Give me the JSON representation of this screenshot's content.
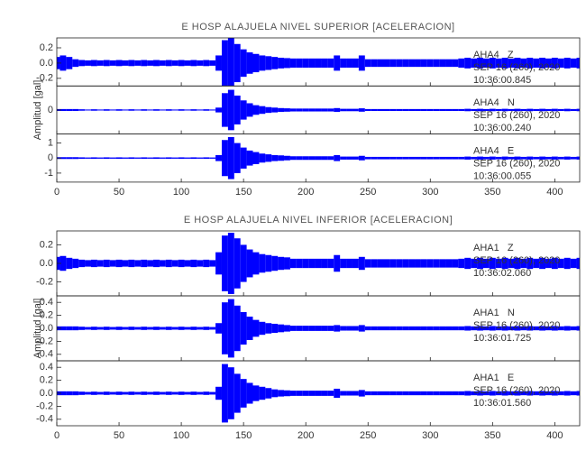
{
  "chart_data": [
    {
      "type": "seismogram",
      "title": "E HOSP ALAJUELA NIVEL SUPERIOR [ACELERACION]",
      "ylabel": "Amplitud [gal]",
      "xlim": [
        0,
        420
      ],
      "xticks": [
        0,
        50,
        100,
        150,
        200,
        250,
        300,
        350,
        400
      ],
      "x": [
        0,
        5,
        10,
        15,
        20,
        25,
        30,
        35,
        40,
        45,
        50,
        55,
        60,
        65,
        70,
        75,
        80,
        85,
        90,
        95,
        100,
        105,
        110,
        115,
        120,
        125,
        130,
        135,
        140,
        145,
        150,
        155,
        160,
        165,
        170,
        175,
        180,
        185,
        190,
        195,
        200,
        205,
        210,
        215,
        220,
        225,
        230,
        235,
        240,
        245,
        250,
        255,
        260,
        265,
        270,
        275,
        280,
        285,
        290,
        295,
        300,
        305,
        310,
        315,
        320,
        325,
        330,
        335,
        340,
        345,
        350,
        355,
        360,
        365,
        370,
        375,
        380,
        385,
        390,
        395,
        400,
        405,
        410,
        415,
        420
      ],
      "series": [
        {
          "label": [
            "AHA4   Z",
            "SEP 16 (260), 2020",
            "10:36:00.845"
          ],
          "color": "#0000ff",
          "ylim": [
            -0.3,
            0.33
          ],
          "yticks": [
            0.2,
            {
              "value": 0,
              "label": "0.0"
            },
            -0.2
          ],
          "values": [
            0.08,
            0.1,
            0.08,
            0.05,
            0.04,
            0.035,
            0.04,
            0.035,
            0.04,
            0.035,
            0.04,
            0.035,
            0.04,
            0.035,
            0.04,
            0.035,
            0.04,
            0.035,
            0.04,
            0.035,
            0.04,
            0.035,
            0.04,
            0.035,
            0.04,
            0.035,
            0.1,
            0.3,
            0.33,
            0.25,
            0.18,
            0.14,
            0.12,
            0.1,
            0.09,
            0.08,
            0.07,
            0.065,
            0.06,
            0.06,
            0.06,
            0.06,
            0.06,
            0.06,
            0.06,
            0.1,
            0.06,
            0.06,
            0.06,
            0.1,
            0.05,
            0.05,
            0.05,
            0.05,
            0.05,
            0.05,
            0.05,
            0.05,
            0.05,
            0.05,
            0.05,
            0.05,
            0.05,
            0.05,
            0.05,
            0.06,
            0.07,
            0.06,
            0.07,
            0.06,
            0.07,
            0.06,
            0.07,
            0.06,
            0.07,
            0.06,
            0.07,
            0.06,
            0.07,
            0.06,
            0.07,
            0.06,
            0.07,
            0.06,
            0.07
          ]
        },
        {
          "label": [
            "AHA4   N",
            "SEP 16 (260), 2020",
            "10:36:00.240"
          ],
          "color": "#0000ff",
          "ylim": [
            -0.5,
            0.5
          ],
          "yticks": [
            0
          ],
          "values": [
            0.02,
            0.02,
            0.02,
            0.02,
            0.015,
            0.01,
            0.015,
            0.01,
            0.015,
            0.01,
            0.015,
            0.01,
            0.015,
            0.01,
            0.015,
            0.01,
            0.015,
            0.01,
            0.015,
            0.01,
            0.015,
            0.01,
            0.015,
            0.01,
            0.015,
            0.01,
            0.05,
            0.35,
            0.42,
            0.3,
            0.2,
            0.14,
            0.1,
            0.08,
            0.06,
            0.05,
            0.04,
            0.035,
            0.03,
            0.03,
            0.03,
            0.03,
            0.03,
            0.03,
            0.03,
            0.04,
            0.025,
            0.025,
            0.025,
            0.035,
            0.02,
            0.02,
            0.02,
            0.02,
            0.02,
            0.02,
            0.02,
            0.02,
            0.02,
            0.02,
            0.02,
            0.02,
            0.02,
            0.02,
            0.02,
            0.02,
            0.025,
            0.02,
            0.025,
            0.02,
            0.025,
            0.02,
            0.025,
            0.02,
            0.025,
            0.02,
            0.025,
            0.02,
            0.025,
            0.02,
            0.025,
            0.02,
            0.025,
            0.02,
            0.025
          ]
        },
        {
          "label": [
            "AHA4   E",
            "SEP 16 (260), 2020",
            "10:36:00.055"
          ],
          "color": "#0000ff",
          "ylim": [
            -1.6,
            1.6
          ],
          "yticks": [
            1,
            0,
            -1
          ],
          "values": [
            0.06,
            0.06,
            0.06,
            0.06,
            0.05,
            0.04,
            0.05,
            0.04,
            0.05,
            0.04,
            0.05,
            0.04,
            0.05,
            0.04,
            0.05,
            0.04,
            0.05,
            0.04,
            0.05,
            0.04,
            0.05,
            0.04,
            0.05,
            0.04,
            0.05,
            0.04,
            0.2,
            1.2,
            1.4,
            1.0,
            0.7,
            0.5,
            0.4,
            0.3,
            0.25,
            0.2,
            0.18,
            0.15,
            0.12,
            0.12,
            0.12,
            0.12,
            0.12,
            0.12,
            0.12,
            0.2,
            0.1,
            0.1,
            0.1,
            0.15,
            0.08,
            0.08,
            0.08,
            0.08,
            0.08,
            0.08,
            0.08,
            0.08,
            0.08,
            0.08,
            0.08,
            0.08,
            0.08,
            0.08,
            0.08,
            0.08,
            0.1,
            0.08,
            0.1,
            0.08,
            0.1,
            0.08,
            0.1,
            0.08,
            0.1,
            0.08,
            0.1,
            0.08,
            0.1,
            0.08,
            0.1,
            0.08,
            0.1,
            0.08,
            0.1
          ]
        }
      ]
    },
    {
      "type": "seismogram",
      "title": "E HOSP ALAJUELA NIVEL INFERIOR [ACELERACION]",
      "ylabel": "Amplitud [gal]",
      "xlim": [
        0,
        420
      ],
      "xticks": [
        0,
        50,
        100,
        150,
        200,
        250,
        300,
        350,
        400
      ],
      "x": [
        0,
        5,
        10,
        15,
        20,
        25,
        30,
        35,
        40,
        45,
        50,
        55,
        60,
        65,
        70,
        75,
        80,
        85,
        90,
        95,
        100,
        105,
        110,
        115,
        120,
        125,
        130,
        135,
        140,
        145,
        150,
        155,
        160,
        165,
        170,
        175,
        180,
        185,
        190,
        195,
        200,
        205,
        210,
        215,
        220,
        225,
        230,
        235,
        240,
        245,
        250,
        255,
        260,
        265,
        270,
        275,
        280,
        285,
        290,
        295,
        300,
        305,
        310,
        315,
        320,
        325,
        330,
        335,
        340,
        345,
        350,
        355,
        360,
        365,
        370,
        375,
        380,
        385,
        390,
        395,
        400,
        405,
        410,
        415,
        420
      ],
      "series": [
        {
          "label": [
            "AHA1   Z",
            "SEP 16 (260), 2020",
            "10:36:02.060"
          ],
          "color": "#0000ff",
          "ylim": [
            -0.35,
            0.35
          ],
          "yticks": [
            0.2,
            {
              "value": 0,
              "label": "0.0"
            },
            -0.2
          ],
          "values": [
            0.07,
            0.08,
            0.06,
            0.05,
            0.04,
            0.035,
            0.04,
            0.035,
            0.04,
            0.035,
            0.04,
            0.035,
            0.04,
            0.035,
            0.04,
            0.035,
            0.04,
            0.035,
            0.04,
            0.035,
            0.04,
            0.035,
            0.04,
            0.035,
            0.04,
            0.035,
            0.12,
            0.3,
            0.33,
            0.27,
            0.2,
            0.15,
            0.12,
            0.1,
            0.09,
            0.08,
            0.07,
            0.065,
            0.05,
            0.05,
            0.05,
            0.05,
            0.05,
            0.05,
            0.05,
            0.09,
            0.05,
            0.05,
            0.05,
            0.07,
            0.045,
            0.045,
            0.045,
            0.045,
            0.045,
            0.045,
            0.045,
            0.045,
            0.045,
            0.045,
            0.045,
            0.045,
            0.045,
            0.045,
            0.045,
            0.05,
            0.06,
            0.05,
            0.06,
            0.05,
            0.06,
            0.05,
            0.06,
            0.05,
            0.06,
            0.05,
            0.06,
            0.05,
            0.06,
            0.05,
            0.06,
            0.05,
            0.06,
            0.05,
            0.06
          ]
        },
        {
          "label": [
            "AHA1   N",
            "SEP 16 (260), 2020",
            "10:36:01.725"
          ],
          "color": "#0000ff",
          "ylim": [
            -0.5,
            0.5
          ],
          "yticks": [
            0.4,
            0.2,
            {
              "value": 0,
              "label": "0.0"
            },
            -0.2,
            -0.4
          ],
          "values": [
            0.03,
            0.03,
            0.03,
            0.03,
            0.025,
            0.02,
            0.025,
            0.02,
            0.025,
            0.02,
            0.025,
            0.02,
            0.025,
            0.02,
            0.025,
            0.02,
            0.025,
            0.02,
            0.025,
            0.02,
            0.025,
            0.02,
            0.025,
            0.02,
            0.025,
            0.02,
            0.08,
            0.4,
            0.45,
            0.35,
            0.25,
            0.18,
            0.13,
            0.1,
            0.08,
            0.07,
            0.06,
            0.05,
            0.04,
            0.04,
            0.04,
            0.04,
            0.04,
            0.04,
            0.04,
            0.05,
            0.035,
            0.035,
            0.035,
            0.05,
            0.03,
            0.03,
            0.03,
            0.03,
            0.03,
            0.03,
            0.03,
            0.03,
            0.03,
            0.03,
            0.03,
            0.03,
            0.03,
            0.03,
            0.03,
            0.03,
            0.035,
            0.03,
            0.035,
            0.03,
            0.035,
            0.03,
            0.035,
            0.03,
            0.035,
            0.03,
            0.035,
            0.03,
            0.035,
            0.03,
            0.035,
            0.03,
            0.035,
            0.03,
            0.035
          ]
        },
        {
          "label": [
            "AHA1   E",
            "SEP 16 (260), 2020",
            "10:36:01.560"
          ],
          "color": "#0000ff",
          "ylim": [
            -0.5,
            0.5
          ],
          "yticks": [
            0.4,
            0.2,
            {
              "value": 0,
              "label": "0.0"
            },
            -0.2,
            -0.4
          ],
          "values": [
            0.03,
            0.03,
            0.03,
            0.03,
            0.025,
            0.02,
            0.025,
            0.02,
            0.025,
            0.02,
            0.025,
            0.02,
            0.025,
            0.02,
            0.025,
            0.02,
            0.025,
            0.02,
            0.025,
            0.02,
            0.025,
            0.02,
            0.025,
            0.02,
            0.025,
            0.02,
            0.1,
            0.45,
            0.4,
            0.3,
            0.22,
            0.16,
            0.12,
            0.1,
            0.08,
            0.06,
            0.05,
            0.045,
            0.04,
            0.04,
            0.04,
            0.04,
            0.04,
            0.04,
            0.04,
            0.07,
            0.035,
            0.035,
            0.035,
            0.05,
            0.03,
            0.03,
            0.03,
            0.03,
            0.03,
            0.03,
            0.03,
            0.03,
            0.03,
            0.03,
            0.03,
            0.03,
            0.03,
            0.03,
            0.03,
            0.03,
            0.035,
            0.03,
            0.035,
            0.03,
            0.035,
            0.03,
            0.035,
            0.03,
            0.035,
            0.03,
            0.035,
            0.03,
            0.035,
            0.03,
            0.035,
            0.03,
            0.035,
            0.03,
            0.035
          ]
        }
      ]
    }
  ]
}
